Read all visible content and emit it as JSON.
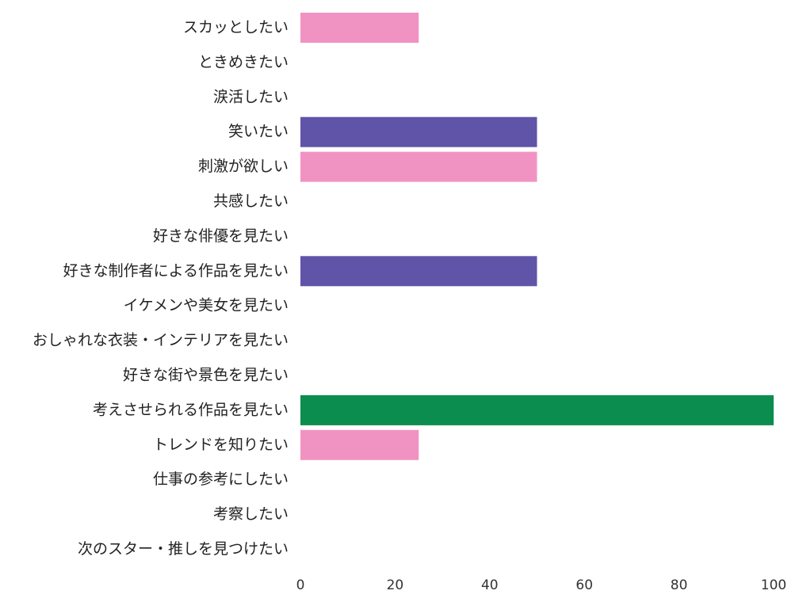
{
  "chart_data": {
    "type": "bar",
    "orientation": "horizontal",
    "categories": [
      "スカッとしたい",
      "ときめきたい",
      "涙活したい",
      "笑いたい",
      "刺激が欲しい",
      "共感したい",
      "好きな俳優を見たい",
      "好きな制作者による作品を見たい",
      "イケメンや美女を見たい",
      "おしゃれな衣装・インテリアを見たい",
      "好きな街や景色を見たい",
      "考えさせられる作品を見たい",
      "トレンドを知りたい",
      "仕事の参考にしたい",
      "考察したい",
      "次のスター・推しを見つけたい"
    ],
    "values": [
      25,
      0,
      0,
      50,
      50,
      0,
      0,
      50,
      0,
      0,
      0,
      100,
      25,
      0,
      0,
      0
    ],
    "bar_colors": [
      "#f193c2",
      "#f193c2",
      "#f193c2",
      "#6054a8",
      "#f193c2",
      "#f193c2",
      "#f193c2",
      "#6054a8",
      "#f193c2",
      "#f193c2",
      "#f193c2",
      "#0a8d4f",
      "#f193c2",
      "#f193c2",
      "#f193c2",
      "#f193c2"
    ],
    "xlim": [
      0,
      100
    ],
    "xticks": [
      0,
      20,
      40,
      60,
      80,
      100
    ],
    "title": "",
    "xlabel": "",
    "ylabel": "",
    "grid": false,
    "legend": "none"
  }
}
